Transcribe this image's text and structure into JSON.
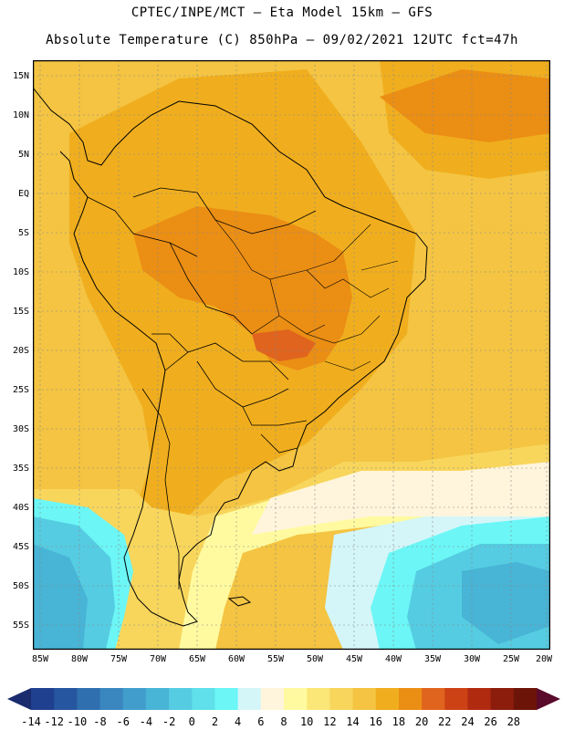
{
  "header": {
    "title_line1": "CPTEC/INPE/MCT –  Eta Model 15km – GFS",
    "title_line2": "Absolute Temperature (C) 850hPa – 09/02/2021 12UTC fct=47h"
  },
  "lat_labels": [
    "15N",
    "10N",
    "5N",
    "EQ",
    "5S",
    "10S",
    "15S",
    "20S",
    "25S",
    "30S",
    "35S",
    "40S",
    "45S",
    "50S",
    "55S"
  ],
  "lon_labels": [
    "85W",
    "80W",
    "75W",
    "70W",
    "65W",
    "60W",
    "55W",
    "50W",
    "45W",
    "40W",
    "35W",
    "30W",
    "25W",
    "20W"
  ],
  "colorbar": {
    "labels": [
      "-14",
      "-12",
      "-10",
      "-8",
      "-6",
      "-4",
      "-2",
      "0",
      "2",
      "4",
      "6",
      "8",
      "10",
      "12",
      "14",
      "16",
      "18",
      "20",
      "22",
      "24",
      "26",
      "28"
    ],
    "colors": [
      "#1f3f8f",
      "#26569f",
      "#2f6faf",
      "#3a86bf",
      "#419ecc",
      "#48b4d6",
      "#55cce2",
      "#60e0ea",
      "#6cf6f6",
      "#d4f6f8",
      "#fff5dc",
      "#fffaa0",
      "#fbe678",
      "#f8d65c",
      "#f4c442",
      "#f0ae1e",
      "#eb8e14",
      "#e0641e",
      "#cc4214",
      "#b02a10",
      "#8c1c0c",
      "#6c1408"
    ],
    "low_arrow_color": "#1a2b6e",
    "high_arrow_color": "#5a0a2a"
  }
}
